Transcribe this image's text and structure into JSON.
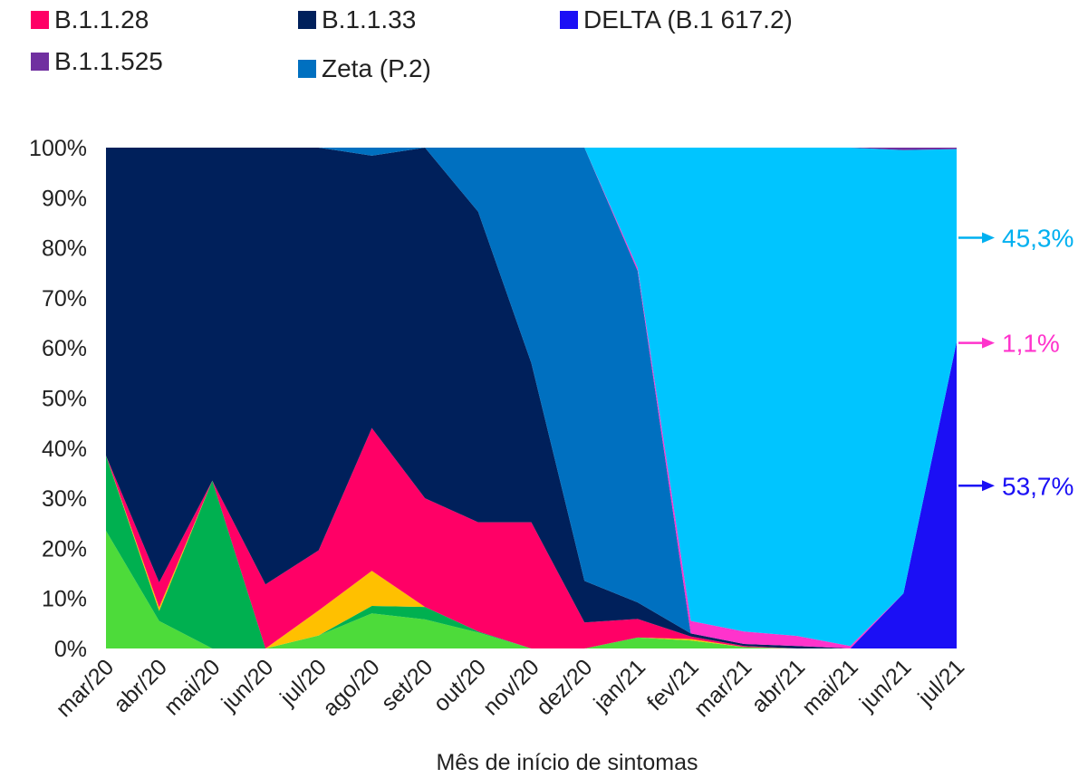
{
  "chart_data": {
    "type": "area",
    "stacked": "percent",
    "xlabel": "Mês de início de sintomas",
    "ylabel": "",
    "ylim": [
      0,
      100
    ],
    "yticks": [
      "0%",
      "10%",
      "20%",
      "30%",
      "40%",
      "50%",
      "60%",
      "70%",
      "80%",
      "90%",
      "100%"
    ],
    "categories": [
      "mar/20",
      "abr/20",
      "mai/20",
      "jun/20",
      "jul/20",
      "ago/20",
      "set/20",
      "out/20",
      "nov/20",
      "dez/20",
      "jan/21",
      "fev/21",
      "mar/21",
      "abr/21",
      "mai/21",
      "jun/21",
      "jul/21"
    ],
    "legend": [
      {
        "name": "B.1.1.28",
        "color": "#FF0066"
      },
      {
        "name": "B.1.1.33",
        "color": "#00205B"
      },
      {
        "name": "DELTA (B.1 617.2)",
        "color": "#1B0FF5"
      },
      {
        "name": "B.1.1.525",
        "color": "#7030A0"
      },
      {
        "name": "Zeta (P.2)",
        "color": "#0070C0"
      }
    ],
    "series": [
      {
        "color": "#1B0FF5",
        "values": [
          0,
          0,
          0,
          0,
          0,
          0,
          0,
          0,
          0,
          0,
          0,
          0,
          0,
          0,
          0,
          11,
          61.2
        ]
      },
      {
        "color": "#4DDB3A",
        "values": [
          23.5,
          5.5,
          0,
          0,
          2.6,
          7,
          5.8,
          3.2,
          0,
          0,
          2.2,
          1.6,
          0.3,
          0,
          0,
          0,
          0
        ]
      },
      {
        "color": "#00B050",
        "values": [
          15,
          2,
          33.5,
          0,
          0,
          1.5,
          2.5,
          0.2,
          0,
          0,
          0,
          0,
          0,
          0,
          0,
          0,
          0
        ]
      },
      {
        "color": "#FFC000",
        "values": [
          0,
          0.7,
          0,
          0,
          5,
          7,
          0,
          0,
          0,
          0,
          0,
          0.3,
          0,
          0,
          0,
          0,
          0
        ]
      },
      {
        "color": "#FF0066",
        "values": [
          0,
          5,
          0,
          12.8,
          12,
          28.5,
          21.7,
          21.8,
          25.2,
          5.2,
          3.7,
          0.5,
          0.2,
          0,
          0,
          0,
          0
        ]
      },
      {
        "color": "#00205B",
        "values": [
          61.5,
          86.8,
          66.5,
          87.2,
          80.4,
          54.4,
          70,
          62,
          31.8,
          8.3,
          3.3,
          0.6,
          0.4,
          0.5,
          0,
          0,
          0
        ]
      },
      {
        "color": "#0070C0",
        "values": [
          0,
          0,
          0,
          0,
          0,
          1.6,
          0,
          12.8,
          43,
          86.5,
          66.2,
          0,
          0,
          0,
          0,
          0,
          0
        ]
      },
      {
        "color": "#FF33CC",
        "values": [
          0,
          0,
          0,
          0,
          0,
          0,
          0,
          0,
          0,
          0,
          0.6,
          2.5,
          2.5,
          2,
          0.5,
          0,
          0
        ]
      },
      {
        "color": "#00C5FF",
        "values": [
          0,
          0,
          0,
          0,
          0,
          0,
          0,
          0,
          0,
          0,
          24,
          94.5,
          96.6,
          97.5,
          99.5,
          88.5,
          38.5
        ]
      },
      {
        "color": "#7030A0",
        "values": [
          0,
          0,
          0,
          0,
          0,
          0,
          0,
          0,
          0,
          0,
          0,
          0,
          0,
          0,
          0,
          0.5,
          0.3
        ]
      }
    ],
    "annotations": [
      {
        "text": "45,3%",
        "color": "#00B0F0",
        "y": 82
      },
      {
        "text": "1,1%",
        "color": "#FF33CC",
        "y": 61
      },
      {
        "text": "53,7%",
        "color": "#1B0FF5",
        "y": 32.5
      }
    ]
  }
}
